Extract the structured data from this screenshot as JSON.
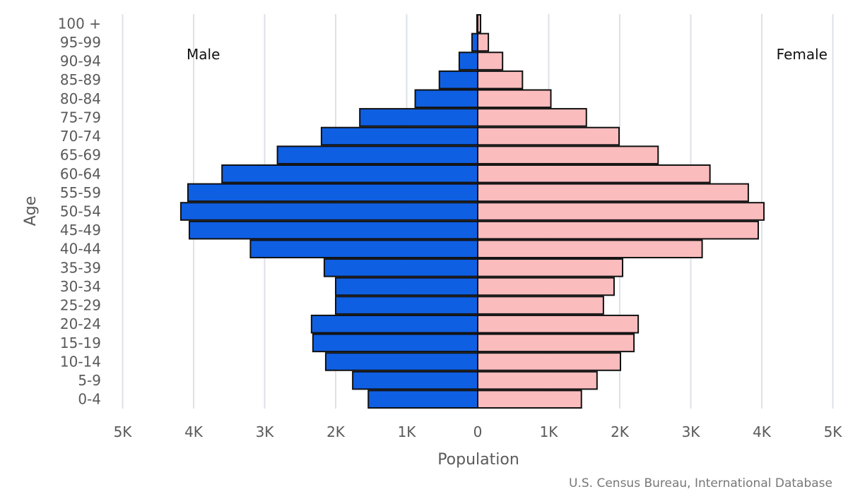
{
  "chart_data": {
    "type": "bar",
    "orientation": "horizontal",
    "subtype": "population-pyramid",
    "title": "",
    "xlabel": "Population",
    "ylabel": "Age",
    "xlim": [
      -5000,
      5000
    ],
    "x_ticks": [
      -5000,
      -4000,
      -3000,
      -2000,
      -1000,
      0,
      1000,
      2000,
      3000,
      4000,
      5000
    ],
    "x_tick_labels": [
      "5K",
      "4K",
      "3K",
      "2K",
      "1K",
      "0",
      "1K",
      "2K",
      "3K",
      "4K",
      "5K"
    ],
    "grid": true,
    "categories": [
      "0-4",
      "5-9",
      "10-14",
      "15-19",
      "20-24",
      "25-29",
      "30-34",
      "35-39",
      "40-44",
      "45-49",
      "50-54",
      "55-59",
      "60-64",
      "65-69",
      "70-74",
      "75-79",
      "80-84",
      "85-89",
      "90-94",
      "95-99",
      "100 +"
    ],
    "series": [
      {
        "name": "Male",
        "side": "left",
        "color": "#0f5fe3",
        "values": [
          1540,
          1760,
          2140,
          2320,
          2340,
          2000,
          2000,
          2160,
          3200,
          4060,
          4180,
          4080,
          3600,
          2820,
          2200,
          1660,
          880,
          540,
          260,
          80,
          10
        ]
      },
      {
        "name": "Female",
        "side": "right",
        "color": "#fbbcbd",
        "values": [
          1460,
          1680,
          2010,
          2200,
          2260,
          1770,
          1920,
          2040,
          3160,
          3950,
          4030,
          3810,
          3270,
          2540,
          1990,
          1530,
          1030,
          630,
          350,
          150,
          40
        ]
      }
    ],
    "source": "U.S. Census Bureau, International Database"
  }
}
